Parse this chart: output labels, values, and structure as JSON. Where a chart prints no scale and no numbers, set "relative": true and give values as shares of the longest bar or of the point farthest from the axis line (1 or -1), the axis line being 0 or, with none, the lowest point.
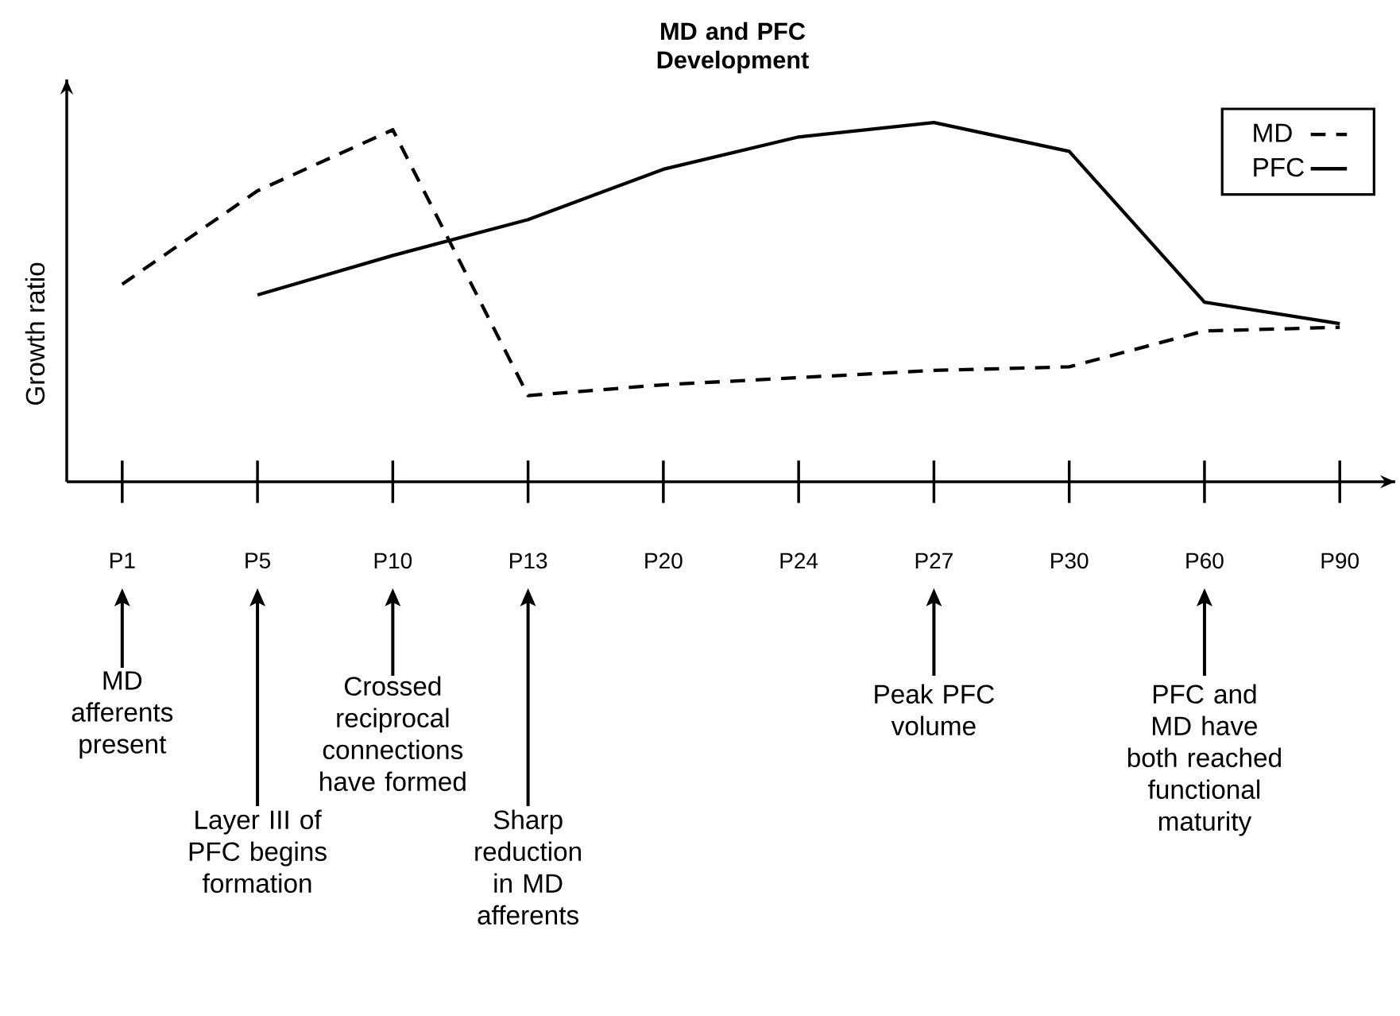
{
  "chart_data": {
    "type": "line",
    "title": "MD and PFC Development",
    "ylabel": "Growth ratio",
    "relative": true,
    "categories": [
      "P1",
      "P5",
      "P10",
      "P13",
      "P20",
      "P24",
      "P27",
      "P30",
      "P60",
      "P90"
    ],
    "series": [
      {
        "name": "MD",
        "color": "#000000",
        "line_style": "dashed",
        "values": [
          0.55,
          0.81,
          0.98,
          0.24,
          0.27,
          0.29,
          0.31,
          0.32,
          0.42,
          0.43
        ]
      },
      {
        "name": "PFC",
        "color": "#000000",
        "line_style": "solid",
        "values": [
          null,
          0.52,
          0.63,
          0.73,
          0.87,
          0.96,
          1.0,
          0.92,
          0.5,
          0.44
        ]
      }
    ],
    "annotations": [
      "MD afferents present",
      "Layer III of PFC begins formation",
      "Crossed reciprocal connections have formed",
      "Sharp reduction in MD afferents",
      "Peak PFC volume",
      "PFC and MD have both reached functional maturity"
    ],
    "legend": "top right",
    "marker": "none",
    "grid": false
  }
}
